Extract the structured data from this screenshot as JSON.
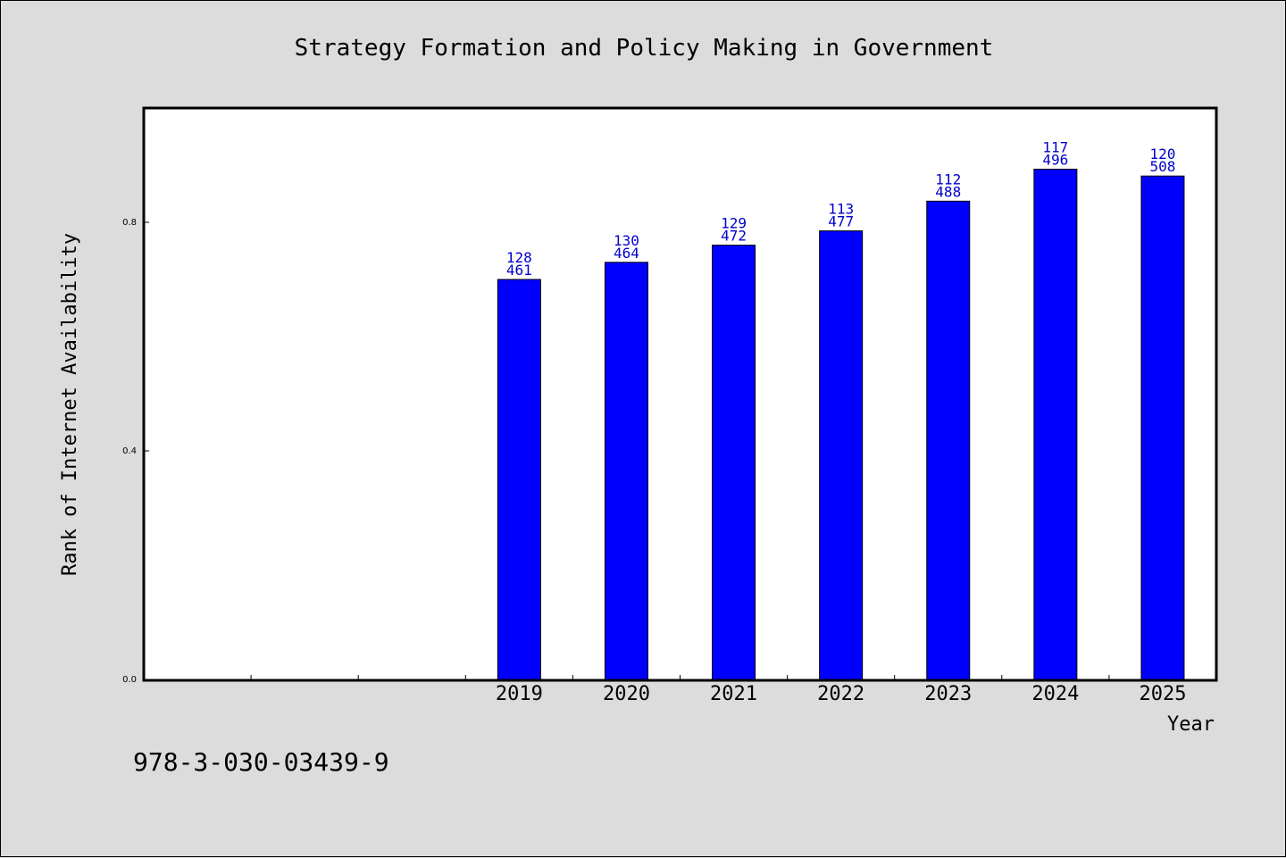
{
  "chart_data": {
    "type": "bar",
    "title": "Strategy Formation and Policy Making in Government",
    "xlabel": "Year",
    "ylabel": "Rank of Internet Availability",
    "categories": [
      "",
      "",
      "",
      "2019",
      "2020",
      "2021",
      "2022",
      "2023",
      "2024",
      "2025"
    ],
    "values": [
      null,
      null,
      null,
      0.7,
      0.73,
      0.76,
      0.785,
      0.837,
      0.893,
      0.881
    ],
    "bar_labels_top": [
      "",
      "",
      "",
      "128",
      "130",
      "129",
      "113",
      "112",
      "117",
      "120"
    ],
    "bar_labels_bottom": [
      "",
      "",
      "",
      "461",
      "464",
      "472",
      "477",
      "488",
      "496",
      "508"
    ],
    "yticks": [
      0.0,
      0.4,
      0.8
    ],
    "ytick_labels": [
      "0.0",
      "0.4",
      "0.8"
    ],
    "ylim": [
      0,
      1.0
    ],
    "bar_color": "#0000ff",
    "label_color": "#0000cc",
    "grid": false
  },
  "footer": {
    "isbn": "978-3-030-03439-9"
  }
}
